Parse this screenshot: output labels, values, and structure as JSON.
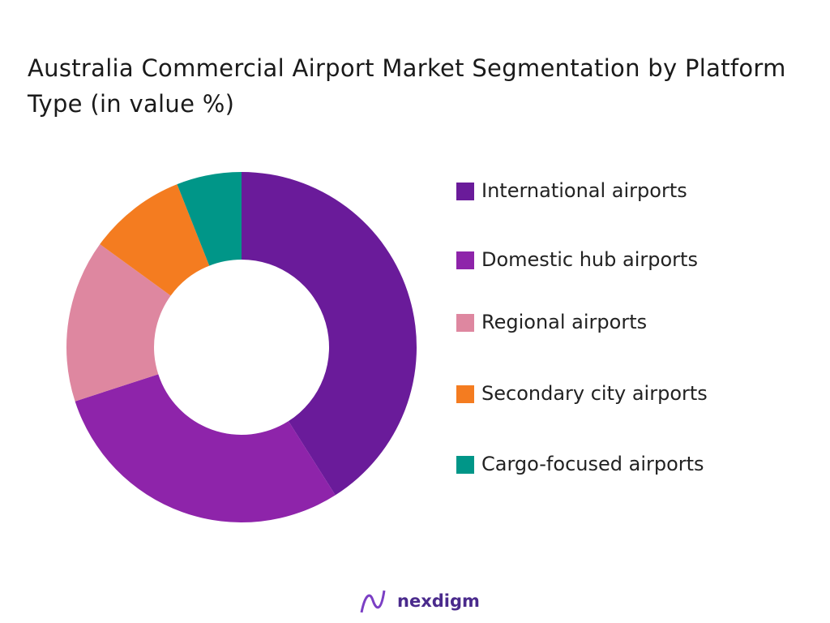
{
  "chart_data": {
    "type": "donut",
    "title": "Australia Commercial Airport Market Segmentation by Platform Type (in value %)",
    "categories": [
      "International airports",
      "Domestic hub airports",
      "Regional airports",
      "Secondary city airports",
      "Cargo-focused airports"
    ],
    "values": [
      41,
      29,
      15,
      9,
      6
    ],
    "colors": [
      "#6a1b9a",
      "#8e24aa",
      "#de87a0",
      "#f47c20",
      "#009688"
    ],
    "legend": "right"
  },
  "brand": "nexdigm"
}
